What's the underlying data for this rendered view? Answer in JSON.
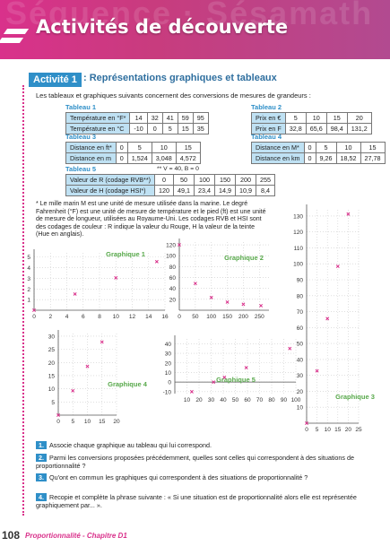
{
  "header": {
    "watermark": "Séquence · Sésamath",
    "title": "Activités de découverte"
  },
  "activity": {
    "badge": "Activité 1",
    "title": ": Représentations graphiques et tableaux"
  },
  "intro": "Les tableaux et graphiques suivants concernent des conversions de mesures de grandeurs :",
  "table1": {
    "title": "Tableau 1",
    "rows": [
      {
        "label": "Température en °F*",
        "values": [
          "14",
          "32",
          "41",
          "59",
          "95"
        ]
      },
      {
        "label": "Température en °C",
        "values": [
          "-10",
          "0",
          "5",
          "15",
          "35"
        ]
      }
    ]
  },
  "table2": {
    "title": "Tableau 2",
    "rows": [
      {
        "label": "Prix en €",
        "values": [
          "5",
          "10",
          "15",
          "20"
        ]
      },
      {
        "label": "Prix en F",
        "values": [
          "32,8",
          "65,6",
          "98,4",
          "131,2"
        ]
      }
    ]
  },
  "table3": {
    "title": "Tableau 3",
    "rows": [
      {
        "label": "Distance en ft*",
        "values": [
          "0",
          "5",
          "10",
          "15"
        ]
      },
      {
        "label": "Distance en m",
        "values": [
          "0",
          "1,524",
          "3,048",
          "4,572"
        ]
      }
    ]
  },
  "table4": {
    "title": "Tableau 4",
    "rows": [
      {
        "label": "Distance en M*",
        "values": [
          "0",
          "5",
          "10",
          "15"
        ]
      },
      {
        "label": "Distance en km",
        "values": [
          "0",
          "9,26",
          "18,52",
          "27,78"
        ]
      }
    ]
  },
  "table5": {
    "title": "Tableau 5",
    "note": "** V = 40, B = 0",
    "rows": [
      {
        "label": "Valeur de R (codage RVB**)",
        "values": [
          "0",
          "50",
          "100",
          "150",
          "200",
          "255"
        ]
      },
      {
        "label": "Valeur de H (codage HSI*)",
        "values": [
          "120",
          "49,1",
          "23,4",
          "14,9",
          "10,9",
          "8,4"
        ]
      }
    ]
  },
  "paragraph": "* Le mille marin M est une unité de mesure utilisée dans la marine. Le degré Fahrenheit (°F) est une unité de mesure de température et le pied (ft) est une unité de mesure de longueur, utilisées au Royaume-Uni. Les codages RVB et HSI sont des codages de couleur : R indique la valeur du Rouge, H la valeur de la teinte (Hue en anglais).",
  "chart_data": [
    {
      "type": "scatter",
      "title": "Graphique 1",
      "x_ticks": [
        "0",
        "2",
        "4",
        "6",
        "8",
        "10",
        "12",
        "14",
        "16"
      ],
      "y_ticks": [
        "1",
        "2",
        "3",
        "4",
        "5"
      ],
      "xlim": [
        0,
        16
      ],
      "ylim": [
        0,
        5.4
      ],
      "x": [
        0,
        5,
        10,
        15
      ],
      "y": [
        0,
        1.524,
        3.048,
        4.572
      ]
    },
    {
      "type": "scatter",
      "title": "Graphique 2",
      "x_ticks": [
        "0",
        "50",
        "100",
        "150",
        "200",
        "250"
      ],
      "y_ticks": [
        "20",
        "40",
        "60",
        "80",
        "100",
        "120"
      ],
      "xlim": [
        0,
        280
      ],
      "ylim": [
        0,
        125
      ],
      "x": [
        0,
        50,
        100,
        150,
        200,
        255
      ],
      "y": [
        120,
        49.1,
        23.4,
        14.9,
        10.9,
        8.4
      ]
    },
    {
      "type": "scatter",
      "title": "Graphique 3",
      "x_ticks": [
        "0",
        "5",
        "10",
        "15",
        "20",
        "25"
      ],
      "y_ticks": [
        "10",
        "20",
        "30",
        "40",
        "50",
        "60",
        "70",
        "80",
        "90",
        "100",
        "110",
        "120",
        "130"
      ],
      "xlim": [
        0,
        25
      ],
      "ylim": [
        0,
        135
      ],
      "x": [
        0,
        5,
        10,
        15,
        20
      ],
      "y": [
        0,
        32.8,
        65.6,
        98.4,
        131.2
      ]
    },
    {
      "type": "scatter",
      "title": "Graphique 4",
      "x_ticks": [
        "0",
        "5",
        "10",
        "15",
        "20"
      ],
      "y_ticks": [
        "5",
        "10",
        "15",
        "20",
        "25",
        "30"
      ],
      "xlim": [
        0,
        20
      ],
      "ylim": [
        0,
        31
      ],
      "x": [
        0,
        5,
        10,
        15
      ],
      "y": [
        0,
        9.26,
        18.52,
        27.78
      ]
    },
    {
      "type": "scatter",
      "title": "Graphique 5",
      "x_ticks": [
        "10",
        "20",
        "30",
        "40",
        "50",
        "60",
        "70",
        "80",
        "90",
        "100"
      ],
      "y_ticks": [
        "-10",
        "0",
        "10",
        "20",
        "30",
        "40"
      ],
      "xlim": [
        0,
        100
      ],
      "ylim": [
        -12,
        45
      ],
      "x": [
        14,
        32,
        41,
        59,
        95
      ],
      "y": [
        -10,
        0,
        5,
        15,
        35
      ]
    }
  ],
  "questions": [
    {
      "num": "1.",
      "text": "Associe chaque graphique au tableau qui lui correspond."
    },
    {
      "num": "2.",
      "text": "Parmi les conversions proposées précédemment, quelles sont celles qui correspondent à des situations de proportionnalité ?"
    },
    {
      "num": "3.",
      "text": "Qu'ont en commun les graphiques qui correspondent à des situations de proportionnalité ?"
    },
    {
      "num": "4.",
      "text": "Recopie et complète la phrase suivante : « Si une situation est de proportionnalité alors elle est représentée graphiquement par... »."
    }
  ],
  "footer": {
    "page": "108",
    "chapter": "Proportionnalité - Chapitre D1"
  },
  "colors": {
    "header": "#d9318b",
    "accent": "#2f8fc8",
    "cell_bg": "#bfe1f3",
    "marker": "#d9318b",
    "graph_title": "#57a84a"
  }
}
